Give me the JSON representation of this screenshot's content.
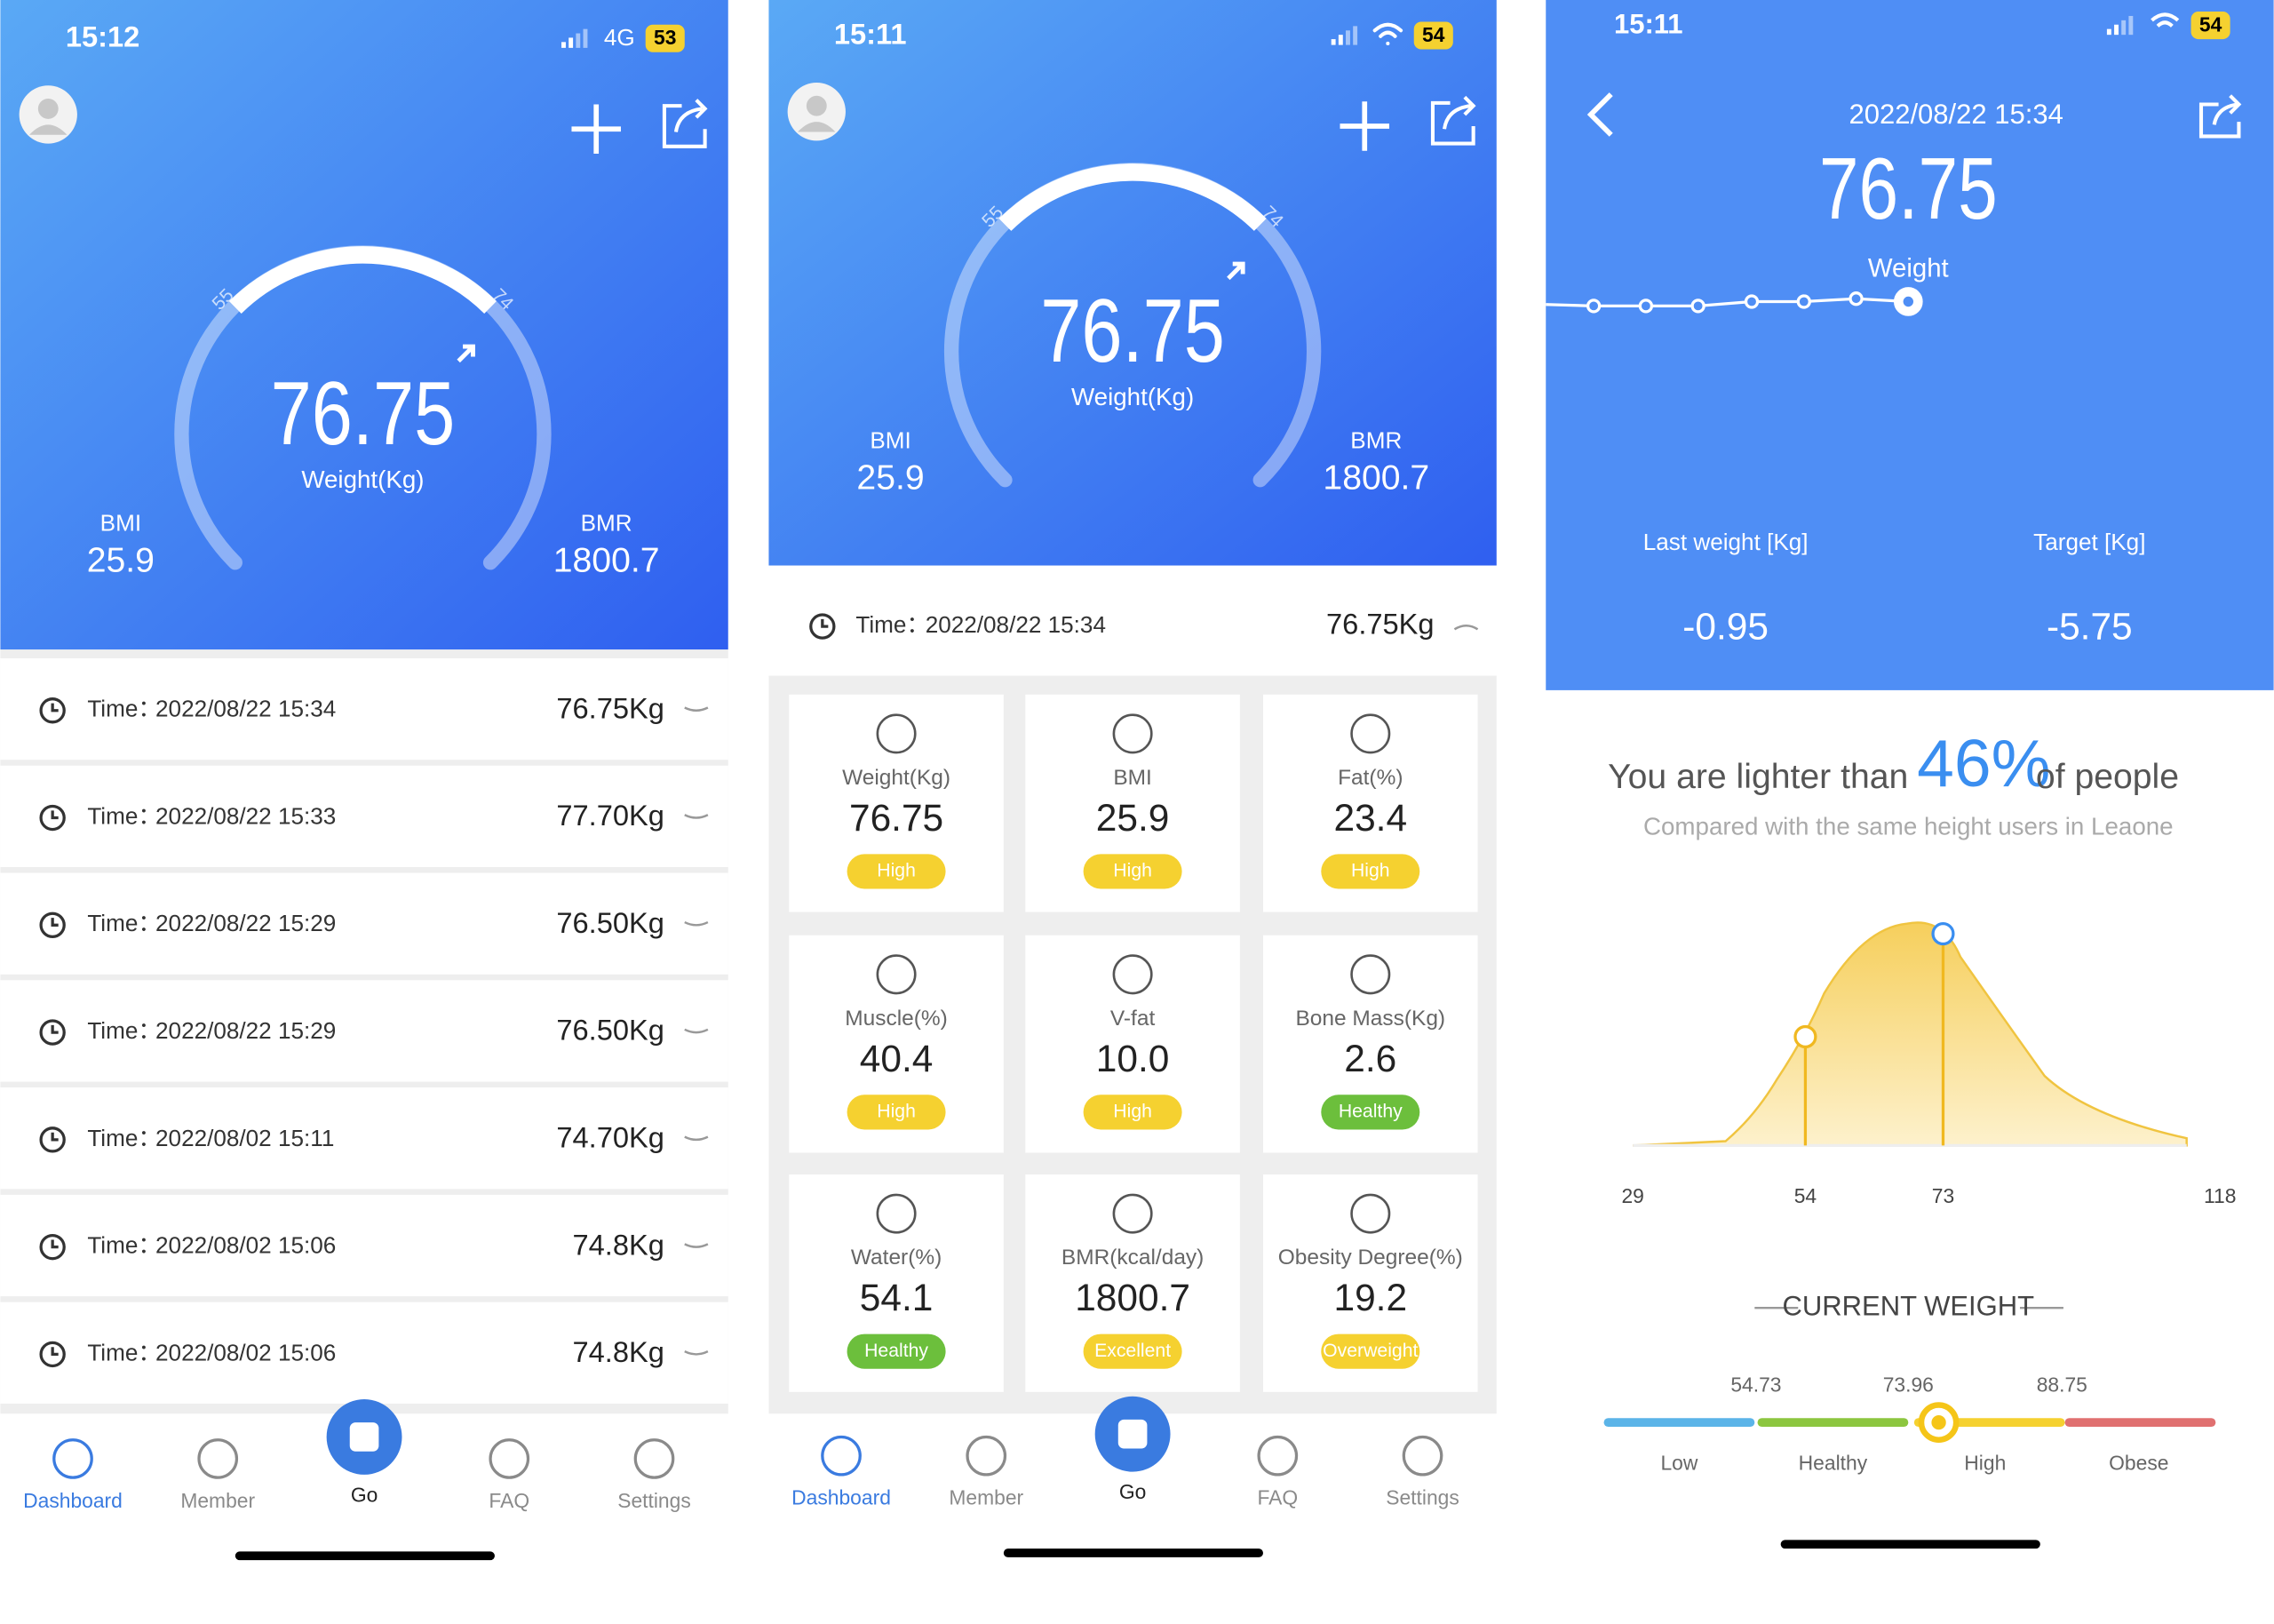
{
  "screens": [
    {
      "status_time": "15:12",
      "network": "4G",
      "battery": "53",
      "gauge": {
        "low": "55",
        "high": "74",
        "value": "76.75",
        "unit_label": "Weight(Kg)"
      },
      "bmi": {
        "label": "BMI",
        "value": "25.9"
      },
      "bmr": {
        "label": "BMR",
        "value": "1800.7"
      },
      "records": [
        {
          "label": "Time：",
          "time": "2022/08/22 15:34",
          "weight": "76.75Kg"
        },
        {
          "label": "Time：",
          "time": "2022/08/22 15:33",
          "weight": "77.70Kg"
        },
        {
          "label": "Time：",
          "time": "2022/08/22 15:29",
          "weight": "76.50Kg"
        },
        {
          "label": "Time：",
          "time": "2022/08/22 15:29",
          "weight": "76.50Kg"
        },
        {
          "label": "Time：",
          "time": "2022/08/02 15:11",
          "weight": "74.70Kg"
        },
        {
          "label": "Time：",
          "time": "2022/08/02 15:06",
          "weight": "74.8Kg"
        },
        {
          "label": "Time：",
          "time": "2022/08/02 15:06",
          "weight": "74.8Kg"
        }
      ]
    },
    {
      "status_time": "15:11",
      "battery": "54",
      "gauge": {
        "low": "55",
        "high": "74",
        "value": "76.75",
        "unit_label": "Weight(Kg)"
      },
      "bmi": {
        "label": "BMI",
        "value": "25.9"
      },
      "bmr": {
        "label": "BMR",
        "value": "1800.7"
      },
      "latest": {
        "label": "Time：",
        "time": "2022/08/22 15:34",
        "weight": "76.75Kg"
      },
      "metrics": [
        {
          "label": "Weight(Kg)",
          "value": "76.75",
          "status": "High"
        },
        {
          "label": "BMI",
          "value": "25.9",
          "status": "High"
        },
        {
          "label": "Fat(%)",
          "value": "23.4",
          "status": "High"
        },
        {
          "label": "Muscle(%)",
          "value": "40.4",
          "status": "High"
        },
        {
          "label": "V-fat",
          "value": "10.0",
          "status": "High"
        },
        {
          "label": "Bone Mass(Kg)",
          "value": "2.6",
          "status": "Healthy"
        },
        {
          "label": "Water(%)",
          "value": "54.1",
          "status": "Healthy"
        },
        {
          "label": "BMR(kcal/day)",
          "value": "1800.7",
          "status": "Excellent"
        },
        {
          "label": "Obesity Degree(%)",
          "value": "19.2",
          "status": "Overweight"
        }
      ]
    },
    {
      "status_time": "15:11",
      "battery": "54",
      "date": "2022/08/22 15:34",
      "weight": "76.75",
      "weight_label": "Weight",
      "last_weight": {
        "label": "Last weight [Kg]",
        "value": "-0.95"
      },
      "target": {
        "label": "Target [Kg]",
        "value": "-5.75"
      },
      "comparison": {
        "prefix": "You are lighter than",
        "percent": "46%",
        "suffix": "of people",
        "note": "Compared with the same height users in Leaone"
      },
      "distribution_labels": [
        "29",
        "54",
        "73",
        "118"
      ],
      "current_weight": {
        "title": "CURRENT WEIGHT",
        "thresholds": [
          "54.73",
          "73.96",
          "88.75"
        ],
        "ranges": [
          "Low",
          "Healthy",
          "High",
          "Obese"
        ]
      }
    }
  ],
  "tab_bar": [
    "Dashboard",
    "Member",
    "Go",
    "FAQ",
    "Settings"
  ]
}
